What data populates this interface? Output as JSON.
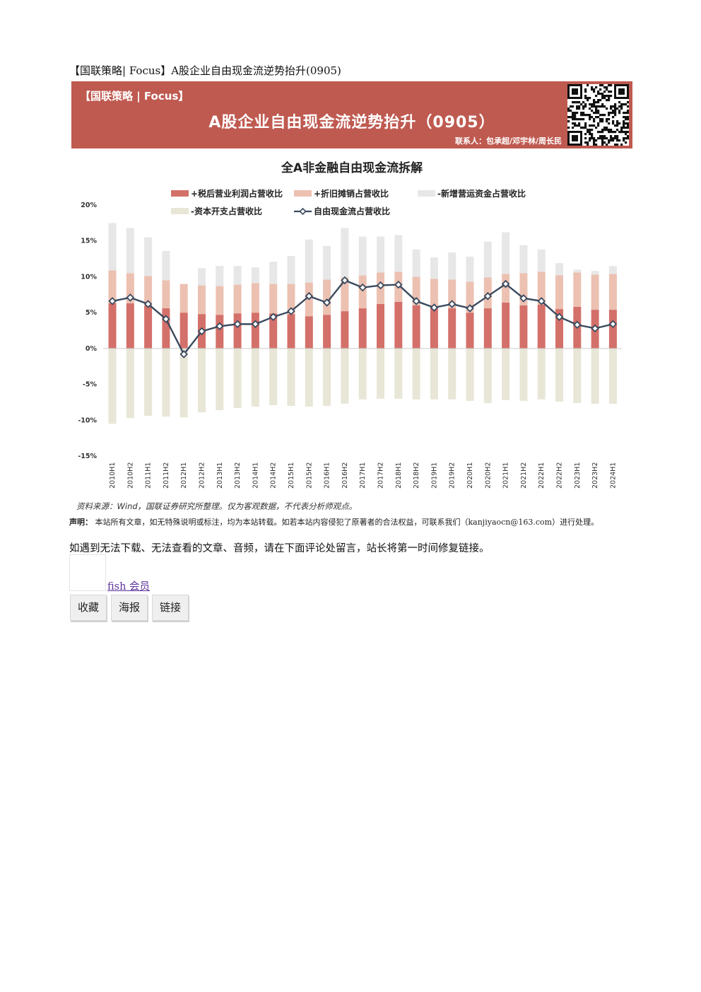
{
  "page": {
    "title": "【国联策略| Focus】A股企业自由现金流逆势抬升(0905)"
  },
  "banner": {
    "tag": "【国联策略 | Focus】",
    "headline": "A股企业自由现金流逆势抬升（0905）",
    "contact": "联系人：包承超/邓宇林/周长民",
    "bg_color": "#bf5a50"
  },
  "chart_data": {
    "type": "bar",
    "stacked": true,
    "title": "全A非金融自由现金流拆解",
    "categories": [
      "2010H1",
      "2010H2",
      "2011H1",
      "2011H2",
      "2012H1",
      "2012H2",
      "2013H1",
      "2013H2",
      "2014H1",
      "2014H2",
      "2015H1",
      "2015H2",
      "2016H1",
      "2016H2",
      "2017H1",
      "2017H2",
      "2018H1",
      "2018H2",
      "2019H1",
      "2019H2",
      "2020H1",
      "2020H2",
      "2021H1",
      "2021H2",
      "2022H1",
      "2022H2",
      "2023H1",
      "2023H2",
      "2024H1"
    ],
    "y_ticks": [
      "20%",
      "15%",
      "10%",
      "5%",
      "0%",
      "-5%",
      "-10%",
      "-15%"
    ],
    "ylim": [
      -15,
      20
    ],
    "legend_position": "top",
    "series": [
      {
        "name": "+税后营业利润占营收比",
        "color": "#d4706a",
        "values": [
          6.3,
          6.3,
          6.0,
          5.6,
          5.0,
          4.8,
          4.7,
          4.9,
          5.0,
          4.9,
          4.8,
          4.5,
          4.7,
          5.2,
          5.6,
          6.2,
          6.5,
          6.0,
          5.7,
          5.6,
          5.0,
          5.6,
          6.4,
          6.0,
          6.1,
          5.5,
          5.8,
          5.4,
          5.4
        ]
      },
      {
        "name": "+折旧摊销占营收比",
        "color": "#ecc1b2",
        "values": [
          4.6,
          4.2,
          4.1,
          3.9,
          4.0,
          4.0,
          4.0,
          4.0,
          4.1,
          4.1,
          4.2,
          4.7,
          4.9,
          4.7,
          4.6,
          4.4,
          4.2,
          4.0,
          4.0,
          4.0,
          4.3,
          4.3,
          4.0,
          4.5,
          4.6,
          4.7,
          4.8,
          4.9,
          5.0
        ]
      },
      {
        "name": "-新增营运资金占营收比",
        "color": "#e7e7e7",
        "values": [
          6.6,
          6.3,
          5.4,
          4.1,
          0.0,
          2.4,
          2.8,
          2.6,
          2.2,
          3.1,
          3.9,
          6.0,
          4.7,
          6.9,
          5.4,
          5.0,
          5.1,
          3.8,
          3.0,
          3.8,
          3.5,
          5.0,
          5.8,
          3.9,
          3.1,
          1.7,
          0.4,
          0.5,
          1.1
        ]
      },
      {
        "name": "-资本开支占营收比",
        "color": "#e8e6d6",
        "values": [
          -10.5,
          -9.7,
          -9.4,
          -9.5,
          -9.6,
          -8.9,
          -8.6,
          -8.3,
          -8.1,
          -7.9,
          -8.0,
          -8.1,
          -8.0,
          -7.7,
          -7.1,
          -7.0,
          -7.0,
          -7.1,
          -7.1,
          -7.1,
          -7.3,
          -7.6,
          -7.2,
          -7.3,
          -7.1,
          -7.4,
          -7.6,
          -7.7,
          -7.7
        ]
      }
    ],
    "line_series": {
      "name": "自由现金流占营收比",
      "color": "#3b4a5e",
      "values": [
        6.6,
        7.1,
        6.2,
        4.1,
        -0.8,
        2.4,
        3.1,
        3.4,
        3.4,
        4.4,
        5.2,
        7.3,
        6.4,
        9.5,
        8.5,
        8.8,
        8.9,
        6.6,
        5.7,
        6.2,
        5.6,
        7.3,
        9.0,
        7.0,
        6.6,
        4.4,
        3.3,
        2.8,
        3.4
      ]
    }
  },
  "source_note": "资料来源：Wind，国联证券研究所整理。仅为客观数据，不代表分析师观点。",
  "disclaimer": {
    "label": "声明：",
    "text": "本站所有文章，如无特殊说明或标注，均为本站转载。如若本站内容侵犯了原著者的合法权益，可联系我们（kanjiyaocn@163.com）进行处理。"
  },
  "notice": "如遇到无法下载、无法查看的文章、音频，请在下面评论处留言，站长将第一时间修复链接。",
  "member": {
    "link_text": "fish 会员"
  },
  "actions": [
    "收藏",
    "海报",
    "链接"
  ]
}
